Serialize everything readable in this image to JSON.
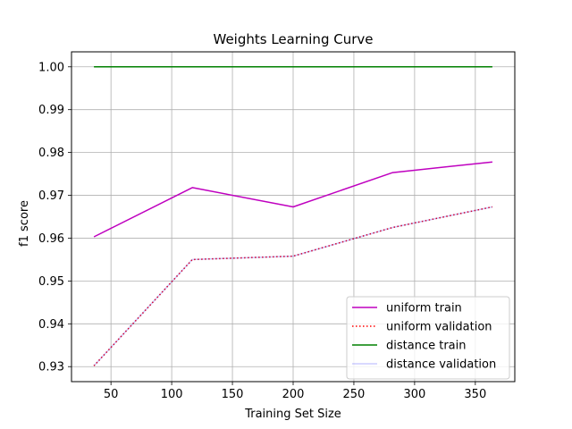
{
  "chart_data": {
    "type": "line",
    "title": "Weights Learning Curve",
    "xlabel": "Training Set Size",
    "ylabel": "f1 score",
    "xlim": [
      17.5,
      382.5
    ],
    "ylim": [
      0.9265,
      1.0035
    ],
    "xticks": [
      50,
      100,
      150,
      200,
      250,
      300,
      350
    ],
    "yticks": [
      0.93,
      0.94,
      0.95,
      0.96,
      0.97,
      0.98,
      0.99,
      1.0
    ],
    "ytick_labels": [
      "0.93",
      "0.94",
      "0.95",
      "0.96",
      "0.97",
      "0.98",
      "0.99",
      "1.00"
    ],
    "grid": true,
    "legend_position": "lower-right",
    "x": [
      36,
      117,
      200,
      282,
      364
    ],
    "series": [
      {
        "name": "uniform train",
        "values": [
          0.9603,
          0.9718,
          0.9673,
          0.9753,
          0.9778
        ],
        "color": "#bf00bf",
        "style": "solid",
        "opacity": 1
      },
      {
        "name": "uniform validation",
        "values": [
          0.9302,
          0.955,
          0.9558,
          0.9625,
          0.9673
        ],
        "color": "#ff0000",
        "style": "dotted",
        "opacity": 1
      },
      {
        "name": "distance train",
        "values": [
          1.0,
          1.0,
          1.0,
          1.0,
          1.0
        ],
        "color": "#008000",
        "style": "solid",
        "opacity": 1
      },
      {
        "name": "distance validation",
        "values": [
          0.9302,
          0.955,
          0.9558,
          0.9625,
          0.9673
        ],
        "color": "#0000ff",
        "style": "solid",
        "opacity": 0.2
      }
    ]
  }
}
